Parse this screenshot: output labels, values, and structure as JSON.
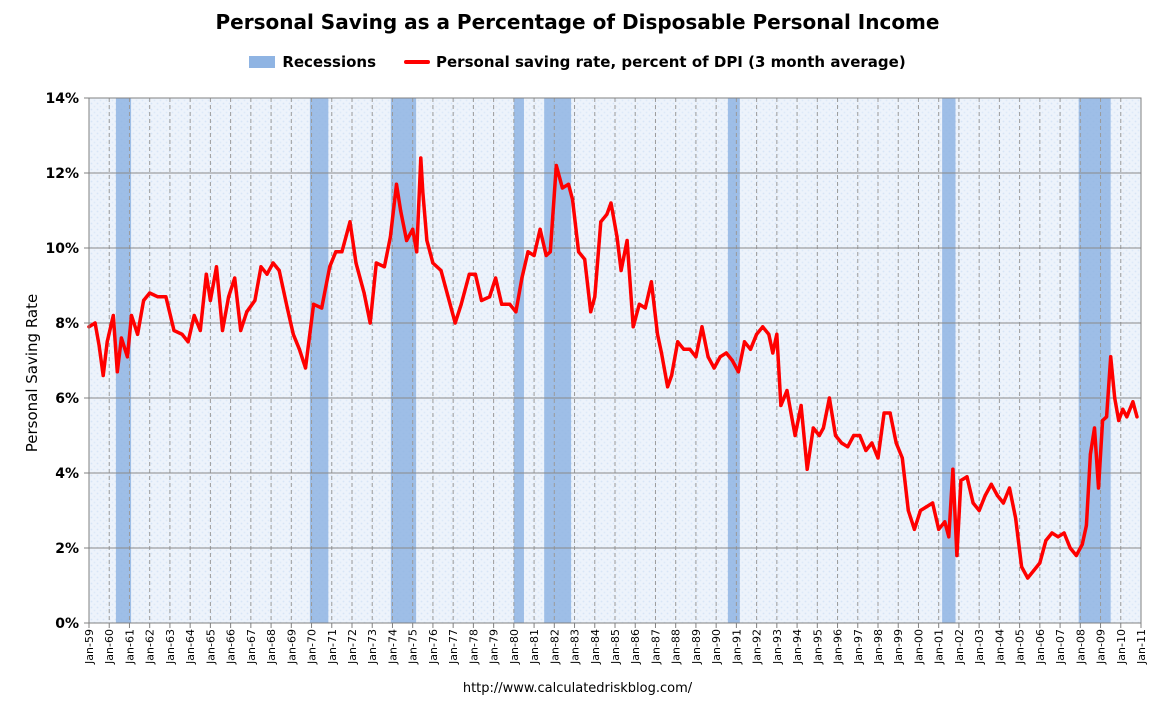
{
  "chart_data": {
    "type": "line",
    "title": "Personal Saving as a Percentage of Disposable Personal Income",
    "legend": [
      "Recessions",
      "Personal saving rate, percent of DPI (3 month average)"
    ],
    "ylabel": "Personal Saving Rate",
    "xlabel": "",
    "ylim": [
      0,
      14
    ],
    "xlim": [
      1959.0,
      2011.0
    ],
    "yticks": [
      0,
      2,
      4,
      6,
      8,
      10,
      12,
      14
    ],
    "ytick_labels": [
      "0%",
      "2%",
      "4%",
      "6%",
      "8%",
      "10%",
      "12%",
      "14%"
    ],
    "xtick_labels": [
      "Jan-59",
      "Jan-60",
      "Jan-61",
      "Jan-62",
      "Jan-63",
      "Jan-64",
      "Jan-65",
      "Jan-66",
      "Jan-67",
      "Jan-68",
      "Jan-69",
      "Jan-70",
      "Jan-71",
      "Jan-72",
      "Jan-73",
      "Jan-74",
      "Jan-75",
      "Jan-76",
      "Jan-77",
      "Jan-78",
      "Jan-79",
      "Jan-80",
      "Jan-81",
      "Jan-82",
      "Jan-83",
      "Jan-84",
      "Jan-85",
      "Jan-86",
      "Jan-87",
      "Jan-88",
      "Jan-89",
      "Jan-90",
      "Jan-91",
      "Jan-92",
      "Jan-93",
      "Jan-94",
      "Jan-95",
      "Jan-96",
      "Jan-97",
      "Jan-98",
      "Jan-99",
      "Jan-00",
      "Jan-01",
      "Jan-02",
      "Jan-03",
      "Jan-04",
      "Jan-05",
      "Jan-06",
      "Jan-07",
      "Jan-08",
      "Jan-09",
      "Jan-10",
      "Jan-11"
    ],
    "grid": true,
    "recessions": [
      [
        1960.33,
        1961.08
      ],
      [
        1969.92,
        1970.83
      ],
      [
        1973.92,
        1975.17
      ],
      [
        1980.0,
        1980.5
      ],
      [
        1981.5,
        1982.83
      ],
      [
        1990.58,
        1991.17
      ],
      [
        2001.17,
        2001.83
      ],
      [
        2007.92,
        2009.5
      ]
    ],
    "series": [
      {
        "name": "Personal saving rate, percent of DPI (3 month average)",
        "color": "#ff0000",
        "x": [
          1959.0,
          1959.3,
          1959.5,
          1959.7,
          1959.9,
          1960.2,
          1960.4,
          1960.6,
          1960.9,
          1961.1,
          1961.4,
          1961.7,
          1962.0,
          1962.4,
          1962.8,
          1963.2,
          1963.6,
          1963.9,
          1964.2,
          1964.5,
          1964.8,
          1965.0,
          1965.3,
          1965.6,
          1965.9,
          1966.2,
          1966.5,
          1966.8,
          1967.2,
          1967.5,
          1967.8,
          1968.1,
          1968.4,
          1968.8,
          1969.1,
          1969.4,
          1969.7,
          1970.1,
          1970.5,
          1970.9,
          1971.2,
          1971.5,
          1971.9,
          1972.2,
          1972.6,
          1972.9,
          1973.2,
          1973.6,
          1973.9,
          1974.2,
          1974.4,
          1974.7,
          1975.0,
          1975.2,
          1975.4,
          1975.5,
          1975.7,
          1976.0,
          1976.4,
          1976.8,
          1977.1,
          1977.4,
          1977.8,
          1978.1,
          1978.4,
          1978.8,
          1979.1,
          1979.4,
          1979.8,
          1980.1,
          1980.4,
          1980.7,
          1981.0,
          1981.3,
          1981.6,
          1981.8,
          1982.1,
          1982.4,
          1982.7,
          1982.9,
          1983.2,
          1983.5,
          1983.8,
          1984.0,
          1984.3,
          1984.6,
          1984.8,
          1985.1,
          1985.3,
          1985.6,
          1985.9,
          1986.2,
          1986.5,
          1986.8,
          1987.1,
          1987.3,
          1987.6,
          1987.8,
          1988.1,
          1988.4,
          1988.7,
          1989.0,
          1989.3,
          1989.6,
          1989.9,
          1990.2,
          1990.5,
          1990.8,
          1991.1,
          1991.4,
          1991.7,
          1992.0,
          1992.3,
          1992.6,
          1992.8,
          1993.0,
          1993.2,
          1993.5,
          1993.7,
          1993.9,
          1994.2,
          1994.5,
          1994.8,
          1995.1,
          1995.3,
          1995.6,
          1995.9,
          1996.2,
          1996.5,
          1996.8,
          1997.1,
          1997.4,
          1997.7,
          1998.0,
          1998.3,
          1998.6,
          1998.9,
          1999.2,
          1999.5,
          1999.8,
          2000.1,
          2000.4,
          2000.7,
          2001.0,
          2001.3,
          2001.5,
          2001.7,
          2001.9,
          2002.1,
          2002.4,
          2002.7,
          2003.0,
          2003.3,
          2003.6,
          2003.9,
          2004.2,
          2004.5,
          2004.8,
          2005.1,
          2005.4,
          2005.7,
          2006.0,
          2006.3,
          2006.6,
          2006.9,
          2007.2,
          2007.5,
          2007.8,
          2008.1,
          2008.3,
          2008.5,
          2008.7,
          2008.9,
          2009.1,
          2009.3,
          2009.5,
          2009.7,
          2009.9,
          2010.1,
          2010.3,
          2010.6,
          2010.8
        ],
        "y": [
          7.9,
          8.0,
          7.4,
          6.6,
          7.5,
          8.2,
          6.7,
          7.6,
          7.1,
          8.2,
          7.7,
          8.6,
          8.8,
          8.7,
          8.7,
          7.8,
          7.7,
          7.5,
          8.2,
          7.8,
          9.3,
          8.6,
          9.5,
          7.8,
          8.7,
          9.2,
          7.8,
          8.3,
          8.6,
          9.5,
          9.3,
          9.6,
          9.4,
          8.4,
          7.7,
          7.3,
          6.8,
          8.5,
          8.4,
          9.5,
          9.9,
          9.9,
          10.7,
          9.6,
          8.8,
          8.0,
          9.6,
          9.5,
          10.3,
          11.7,
          11.0,
          10.2,
          10.5,
          9.9,
          12.4,
          11.5,
          10.2,
          9.6,
          9.4,
          8.6,
          8.0,
          8.5,
          9.3,
          9.3,
          8.6,
          8.7,
          9.2,
          8.5,
          8.5,
          8.3,
          9.2,
          9.9,
          9.8,
          10.5,
          9.8,
          9.9,
          12.2,
          11.6,
          11.7,
          11.3,
          9.9,
          9.7,
          8.3,
          8.7,
          10.7,
          10.9,
          11.2,
          10.3,
          9.4,
          10.2,
          7.9,
          8.5,
          8.4,
          9.1,
          7.7,
          7.2,
          6.3,
          6.6,
          7.5,
          7.3,
          7.3,
          7.1,
          7.9,
          7.1,
          6.8,
          7.1,
          7.2,
          7.0,
          6.7,
          7.5,
          7.3,
          7.7,
          7.9,
          7.7,
          7.2,
          7.7,
          5.8,
          6.2,
          5.6,
          5.0,
          5.8,
          4.1,
          5.2,
          5.0,
          5.2,
          6.0,
          5.0,
          4.8,
          4.7,
          5.0,
          5.0,
          4.6,
          4.8,
          4.4,
          5.6,
          5.6,
          4.8,
          4.4,
          3.0,
          2.5,
          3.0,
          3.1,
          3.2,
          2.5,
          2.7,
          2.3,
          4.1,
          1.8,
          3.8,
          3.9,
          3.2,
          3.0,
          3.4,
          3.7,
          3.4,
          3.2,
          3.6,
          2.8,
          1.5,
          1.2,
          1.4,
          1.6,
          2.2,
          2.4,
          2.3,
          2.4,
          2.0,
          1.8,
          2.1,
          2.6,
          4.5,
          5.2,
          3.6,
          5.4,
          5.5,
          7.1,
          6.0,
          5.4,
          5.7,
          5.5,
          5.9,
          5.5
        ]
      }
    ]
  },
  "source": "http://www.calculatedriskblog.com/"
}
